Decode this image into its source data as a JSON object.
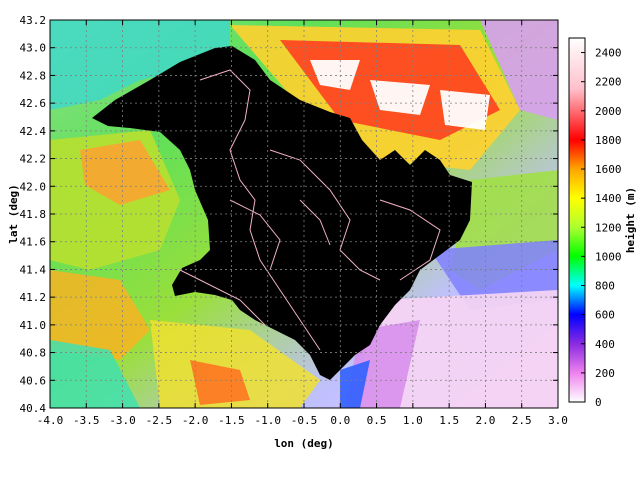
{
  "chart_data": {
    "type": "heatmap",
    "title": "",
    "xlabel": "lon (deg)",
    "ylabel": "lat (deg)",
    "colorbar_label": "height (m)",
    "xlim": [
      -4.0,
      3.0
    ],
    "ylim": [
      40.4,
      43.2
    ],
    "x_ticks": [
      "-4.0",
      "-3.5",
      "-3.0",
      "-2.5",
      "-2.0",
      "-1.5",
      "-1.0",
      "-0.5",
      "0.0",
      "0.5",
      "1.0",
      "1.5",
      "2.0",
      "2.5",
      "3.0"
    ],
    "y_ticks": [
      "40.4",
      "40.6",
      "40.8",
      "41.0",
      "41.2",
      "41.4",
      "41.6",
      "41.8",
      "42.0",
      "42.2",
      "42.4",
      "42.6",
      "42.8",
      "43.0",
      "43.2"
    ],
    "colorbar_ticks": [
      "0",
      "200",
      "400",
      "600",
      "800",
      "1000",
      "1200",
      "1400",
      "1600",
      "1800",
      "2000",
      "2200",
      "2400"
    ],
    "colorbar_range": [
      0,
      2500
    ],
    "grid": true,
    "masked_region_color": "#000000",
    "colormap": [
      "#ffffff",
      "#ee82ee",
      "#8a2be2",
      "#0000ff",
      "#00ffff",
      "#00ff00",
      "#adff2f",
      "#ffff00",
      "#ffa500",
      "#ff0000",
      "#ffc0cb",
      "#ffffff"
    ]
  }
}
